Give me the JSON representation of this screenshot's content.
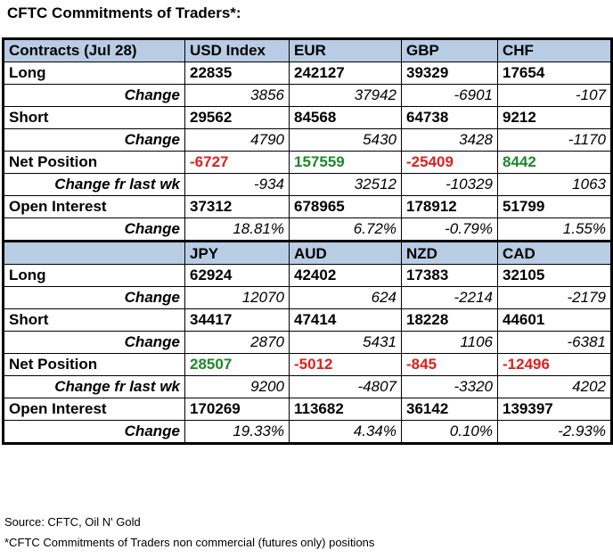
{
  "title": "CFTC Commitments of Traders*:",
  "colors": {
    "header_bg": "#b8cce4",
    "negative": "#e0201c",
    "positive": "#1a8a2a"
  },
  "section1": {
    "header": [
      "Contracts (Jul 28)",
      "USD Index",
      "EUR",
      "GBP",
      "CHF"
    ],
    "long": [
      "Long",
      "22835",
      "242127",
      "39329",
      "17654"
    ],
    "long_change": [
      "Change",
      "3856",
      "37942",
      "-6901",
      "-107"
    ],
    "short": [
      "Short",
      "29562",
      "84568",
      "64738",
      "9212"
    ],
    "short_change": [
      "Change",
      "4790",
      "5430",
      "3428",
      "-1170"
    ],
    "net": [
      "Net Position",
      "-6727",
      "157559",
      "-25409",
      "8442"
    ],
    "net_change": [
      "Change fr last wk",
      "-934",
      "32512",
      "-10329",
      "1063"
    ],
    "oi": [
      "Open Interest",
      "37312",
      "678965",
      "178912",
      "51799"
    ],
    "oi_change": [
      "Change",
      "18.81%",
      "6.72%",
      "-0.79%",
      "1.55%"
    ]
  },
  "section2": {
    "header": [
      "",
      "JPY",
      "AUD",
      "NZD",
      "CAD"
    ],
    "long": [
      "Long",
      "62924",
      "42402",
      "17383",
      "32105"
    ],
    "long_change": [
      "Change",
      "12070",
      "624",
      "-2214",
      "-2179"
    ],
    "short": [
      "Short",
      "34417",
      "47414",
      "18228",
      "44601"
    ],
    "short_change": [
      "Change",
      "2870",
      "5431",
      "1106",
      "-6381"
    ],
    "net": [
      "Net Position",
      "28507",
      "-5012",
      "-845",
      "-12496"
    ],
    "net_change": [
      "Change fr last wk",
      "9200",
      "-4807",
      "-3320",
      "4202"
    ],
    "oi": [
      "Open Interest",
      "170269",
      "113682",
      "36142",
      "139397"
    ],
    "oi_change": [
      "Change",
      "19.33%",
      "4.34%",
      "0.10%",
      "-2.93%"
    ]
  },
  "source": "Source: CFTC, Oil N' Gold",
  "footnote": "*CFTC Commitments of Traders non commercial (futures only) positions"
}
